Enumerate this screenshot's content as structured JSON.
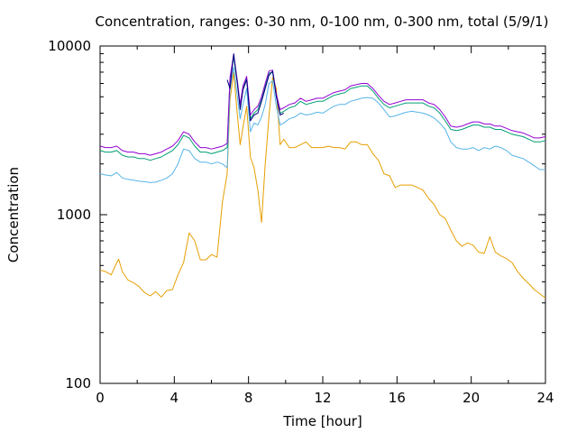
{
  "chart_data": {
    "type": "line",
    "title": "Concentration, ranges: 0-30 nm, 0-100 nm, 0-300 nm, total (5/9/1)",
    "xlabel": "Time [hour]",
    "ylabel": "Concentration",
    "xlim": [
      0,
      24
    ],
    "ylim": [
      100,
      10000
    ],
    "yscale": "log",
    "grid": false,
    "legend": "none",
    "x_ticks": [
      0,
      4,
      8,
      12,
      16,
      20,
      24
    ],
    "x_tick_labels": [
      "0",
      "4",
      "8",
      "12",
      "16",
      "20",
      "24"
    ],
    "y_ticks": [
      100,
      1000,
      10000
    ],
    "y_tick_labels": [
      "100",
      "1000",
      "10000"
    ],
    "series": [
      {
        "color": "#e69f00",
        "x": [
          0,
          0.3,
          0.6,
          0.9,
          1.0,
          1.2,
          1.5,
          1.8,
          2.1,
          2.4,
          2.7,
          3.0,
          3.3,
          3.6,
          3.9,
          4.2,
          4.5,
          4.8,
          5.1,
          5.4,
          5.7,
          6.0,
          6.3,
          6.6,
          6.85,
          7.0,
          7.2,
          7.4,
          7.55,
          7.7,
          7.9,
          8.1,
          8.3,
          8.5,
          8.7,
          8.9,
          9.1,
          9.3,
          9.5,
          9.7,
          9.9,
          10.2,
          10.5,
          10.8,
          11.1,
          11.4,
          11.7,
          12.0,
          12.3,
          12.6,
          12.9,
          13.2,
          13.5,
          13.8,
          14.1,
          14.4,
          14.7,
          15.0,
          15.3,
          15.6,
          15.9,
          16.2,
          16.5,
          16.8,
          17.1,
          17.4,
          17.7,
          18.0,
          18.3,
          18.6,
          18.9,
          19.2,
          19.5,
          19.8,
          20.1,
          20.4,
          20.7,
          21.0,
          21.3,
          21.6,
          21.9,
          22.2,
          22.5,
          22.8,
          23.1,
          23.4,
          23.7,
          24.0
        ],
        "values": [
          470,
          460,
          440,
          520,
          545,
          460,
          410,
          395,
          375,
          345,
          330,
          350,
          325,
          355,
          360,
          440,
          520,
          780,
          700,
          540,
          540,
          580,
          560,
          1200,
          1750,
          4800,
          7000,
          3900,
          2600,
          3300,
          4400,
          2200,
          1900,
          1400,
          900,
          2000,
          3800,
          6500,
          5600,
          2600,
          2800,
          2500,
          2500,
          2600,
          2700,
          2500,
          2500,
          2500,
          2550,
          2500,
          2500,
          2450,
          2700,
          2700,
          2600,
          2600,
          2300,
          2100,
          1750,
          1700,
          1450,
          1500,
          1500,
          1500,
          1450,
          1400,
          1250,
          1150,
          1000,
          950,
          810,
          700,
          650,
          680,
          660,
          600,
          590,
          740,
          600,
          570,
          550,
          520,
          460,
          420,
          390,
          360,
          340,
          320
        ]
      },
      {
        "color": "#56b4e9",
        "x": [
          0,
          0.3,
          0.6,
          0.9,
          1.2,
          1.5,
          1.8,
          2.1,
          2.4,
          2.7,
          3.0,
          3.3,
          3.6,
          3.9,
          4.2,
          4.5,
          4.8,
          5.1,
          5.4,
          5.7,
          6.0,
          6.3,
          6.6,
          6.85,
          7.0,
          7.2,
          7.4,
          7.55,
          7.7,
          7.9,
          8.1,
          8.3,
          8.5,
          8.7,
          8.9,
          9.1,
          9.3,
          9.5,
          9.7,
          9.9,
          10.2,
          10.5,
          10.8,
          11.1,
          11.4,
          11.7,
          12.0,
          12.3,
          12.6,
          12.9,
          13.2,
          13.5,
          13.8,
          14.1,
          14.4,
          14.7,
          15.0,
          15.3,
          15.6,
          15.9,
          16.2,
          16.5,
          16.8,
          17.1,
          17.4,
          17.7,
          18.0,
          18.3,
          18.6,
          18.9,
          19.2,
          19.5,
          19.8,
          20.1,
          20.4,
          20.7,
          21.0,
          21.3,
          21.6,
          21.9,
          22.2,
          22.5,
          22.8,
          23.1,
          23.4,
          23.7,
          24.0
        ],
        "values": [
          1750,
          1720,
          1700,
          1780,
          1650,
          1620,
          1600,
          1580,
          1570,
          1550,
          1560,
          1600,
          1650,
          1750,
          2000,
          2450,
          2400,
          2150,
          2050,
          2050,
          2000,
          2050,
          2000,
          1900,
          5500,
          7500,
          5000,
          3700,
          4500,
          5600,
          3100,
          3500,
          3400,
          3800,
          4500,
          6000,
          6200,
          4400,
          3400,
          3500,
          3700,
          3800,
          4000,
          3900,
          3950,
          4050,
          4000,
          4200,
          4400,
          4500,
          4500,
          4700,
          4800,
          4900,
          4950,
          4900,
          4600,
          4200,
          3800,
          3850,
          3950,
          4050,
          4100,
          4050,
          4000,
          3900,
          3750,
          3500,
          3200,
          2700,
          2500,
          2450,
          2450,
          2500,
          2400,
          2500,
          2450,
          2550,
          2500,
          2400,
          2250,
          2200,
          2150,
          2050,
          1950,
          1850,
          1850
        ]
      },
      {
        "color": "#009e73",
        "x": [
          0,
          0.3,
          0.6,
          0.9,
          1.2,
          1.5,
          1.8,
          2.1,
          2.4,
          2.7,
          3.0,
          3.3,
          3.6,
          3.9,
          4.2,
          4.5,
          4.8,
          5.1,
          5.4,
          5.7,
          6.0,
          6.3,
          6.6,
          6.85,
          7.0,
          7.2,
          7.4,
          7.55,
          7.7,
          7.9,
          8.1,
          8.3,
          8.5,
          8.7,
          8.9,
          9.1,
          9.3,
          9.5,
          9.7,
          9.9,
          10.2,
          10.5,
          10.8,
          11.1,
          11.4,
          11.7,
          12.0,
          12.3,
          12.6,
          12.9,
          13.2,
          13.5,
          13.8,
          14.1,
          14.4,
          14.7,
          15.0,
          15.3,
          15.6,
          15.9,
          16.2,
          16.5,
          16.8,
          17.1,
          17.4,
          17.7,
          18.0,
          18.3,
          18.6,
          18.9,
          19.2,
          19.5,
          19.8,
          20.1,
          20.4,
          20.7,
          21.0,
          21.3,
          21.6,
          21.9,
          22.2,
          22.5,
          22.8,
          23.1,
          23.4,
          23.7,
          24.0
        ],
        "values": [
          2400,
          2350,
          2350,
          2400,
          2250,
          2200,
          2200,
          2150,
          2150,
          2100,
          2150,
          2200,
          2300,
          2400,
          2600,
          2950,
          2850,
          2550,
          2350,
          2350,
          2300,
          2350,
          2400,
          2500,
          6300,
          8600,
          6000,
          4300,
          5600,
          6400,
          3700,
          4000,
          4200,
          4800,
          5800,
          6900,
          7000,
          5000,
          4000,
          4100,
          4300,
          4400,
          4700,
          4500,
          4600,
          4700,
          4700,
          4900,
          5100,
          5200,
          5300,
          5600,
          5700,
          5800,
          5800,
          5400,
          4900,
          4500,
          4300,
          4400,
          4500,
          4600,
          4600,
          4600,
          4600,
          4400,
          4300,
          4000,
          3600,
          3200,
          3150,
          3200,
          3300,
          3400,
          3400,
          3300,
          3300,
          3200,
          3200,
          3100,
          3000,
          2950,
          2900,
          2800,
          2700,
          2700,
          2750
        ]
      },
      {
        "color": "#9400d3",
        "x": [
          0,
          0.3,
          0.6,
          0.9,
          1.2,
          1.5,
          1.8,
          2.1,
          2.4,
          2.7,
          3.0,
          3.3,
          3.6,
          3.9,
          4.2,
          4.5,
          4.8,
          5.1,
          5.4,
          5.7,
          6.0,
          6.3,
          6.6,
          6.85,
          7.0,
          7.2,
          7.4,
          7.55,
          7.7,
          7.9,
          8.1,
          8.3,
          8.5,
          8.7,
          8.9,
          9.1,
          9.3,
          9.5,
          9.7,
          9.9,
          10.2,
          10.5,
          10.8,
          11.1,
          11.4,
          11.7,
          12.0,
          12.3,
          12.6,
          12.9,
          13.2,
          13.5,
          13.8,
          14.1,
          14.4,
          14.7,
          15.0,
          15.3,
          15.6,
          15.9,
          16.2,
          16.5,
          16.8,
          17.1,
          17.4,
          17.7,
          18.0,
          18.3,
          18.6,
          18.9,
          19.2,
          19.5,
          19.8,
          20.1,
          20.4,
          20.7,
          21.0,
          21.3,
          21.6,
          21.9,
          22.2,
          22.5,
          22.8,
          23.1,
          23.4,
          23.7,
          24.0
        ],
        "values": [
          2550,
          2500,
          2500,
          2550,
          2400,
          2350,
          2350,
          2300,
          2300,
          2250,
          2300,
          2350,
          2450,
          2550,
          2750,
          3100,
          3000,
          2700,
          2500,
          2500,
          2450,
          2500,
          2550,
          2650,
          6500,
          8900,
          6200,
          4500,
          5800,
          6600,
          3900,
          4200,
          4400,
          5000,
          6000,
          7100,
          7200,
          5200,
          4200,
          4300,
          4500,
          4600,
          4900,
          4700,
          4800,
          4900,
          4900,
          5100,
          5300,
          5400,
          5500,
          5800,
          5900,
          6000,
          6000,
          5600,
          5100,
          4700,
          4500,
          4600,
          4700,
          4800,
          4800,
          4800,
          4800,
          4600,
          4500,
          4200,
          3800,
          3350,
          3300,
          3350,
          3450,
          3550,
          3550,
          3450,
          3450,
          3350,
          3350,
          3250,
          3150,
          3100,
          3050,
          2950,
          2850,
          2850,
          2900
        ]
      },
      {
        "color": "#000080",
        "x": [
          6.85,
          7.0,
          7.2,
          7.4,
          7.55,
          7.7,
          7.9,
          8.1,
          8.3,
          8.5,
          8.7,
          8.9,
          9.1,
          9.3,
          9.5,
          9.7,
          9.9
        ],
        "values": [
          6300,
          5600,
          9000,
          6000,
          4200,
          5500,
          6300,
          3600,
          3900,
          4000,
          4700,
          5600,
          6700,
          7100,
          5000,
          3900,
          4000
        ]
      }
    ]
  }
}
